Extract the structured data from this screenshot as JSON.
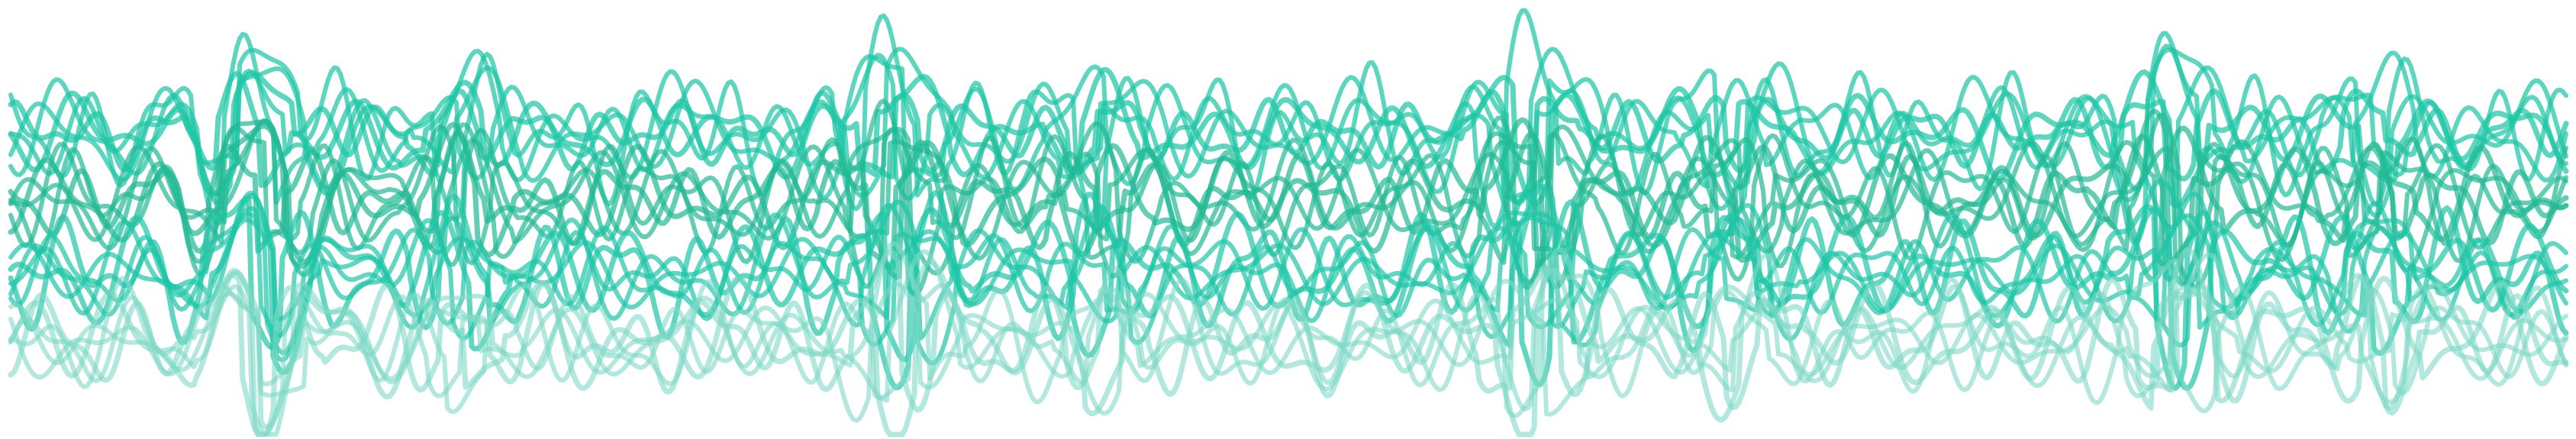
{
  "artwork": {
    "background": "#ffffff",
    "palette": [
      "#1ec6a6",
      "#26b896",
      "#7fd8c6"
    ],
    "bands": [
      {
        "color": "#1ec6a6",
        "opacity": 0.72
      },
      {
        "color": "#22b994",
        "opacity": 0.7
      },
      {
        "color": "#1ec6a6",
        "opacity": 0.7
      },
      {
        "color": "#7fd8c6",
        "opacity": 0.6
      }
    ]
  }
}
